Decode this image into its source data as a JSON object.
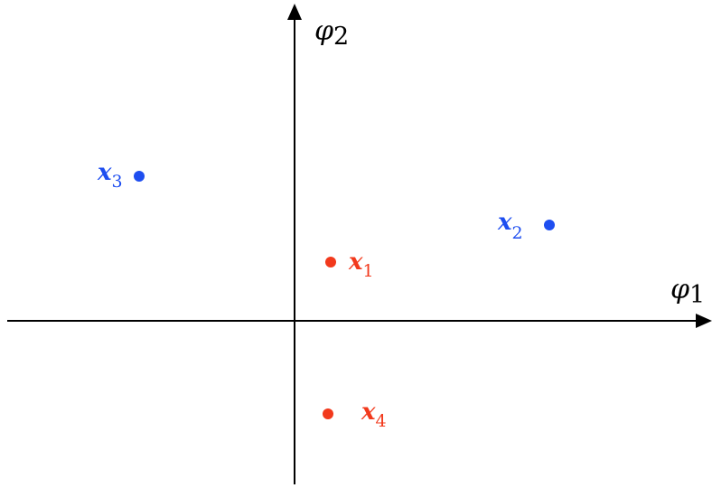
{
  "axes": {
    "x_label": {
      "symbol": "φ",
      "subscript": "1"
    },
    "y_label": {
      "symbol": "φ",
      "subscript": "2"
    }
  },
  "points": [
    {
      "id": "x1",
      "label": {
        "symbol": "x",
        "subscript": "1"
      },
      "color": "#f2391c",
      "class": "red"
    },
    {
      "id": "x2",
      "label": {
        "symbol": "x",
        "subscript": "2"
      },
      "color": "#1e4ef0",
      "class": "blue"
    },
    {
      "id": "x3",
      "label": {
        "symbol": "x",
        "subscript": "3"
      },
      "color": "#1e4ef0",
      "class": "blue"
    },
    {
      "id": "x4",
      "label": {
        "symbol": "x",
        "subscript": "4"
      },
      "color": "#f2391c",
      "class": "red"
    }
  ]
}
